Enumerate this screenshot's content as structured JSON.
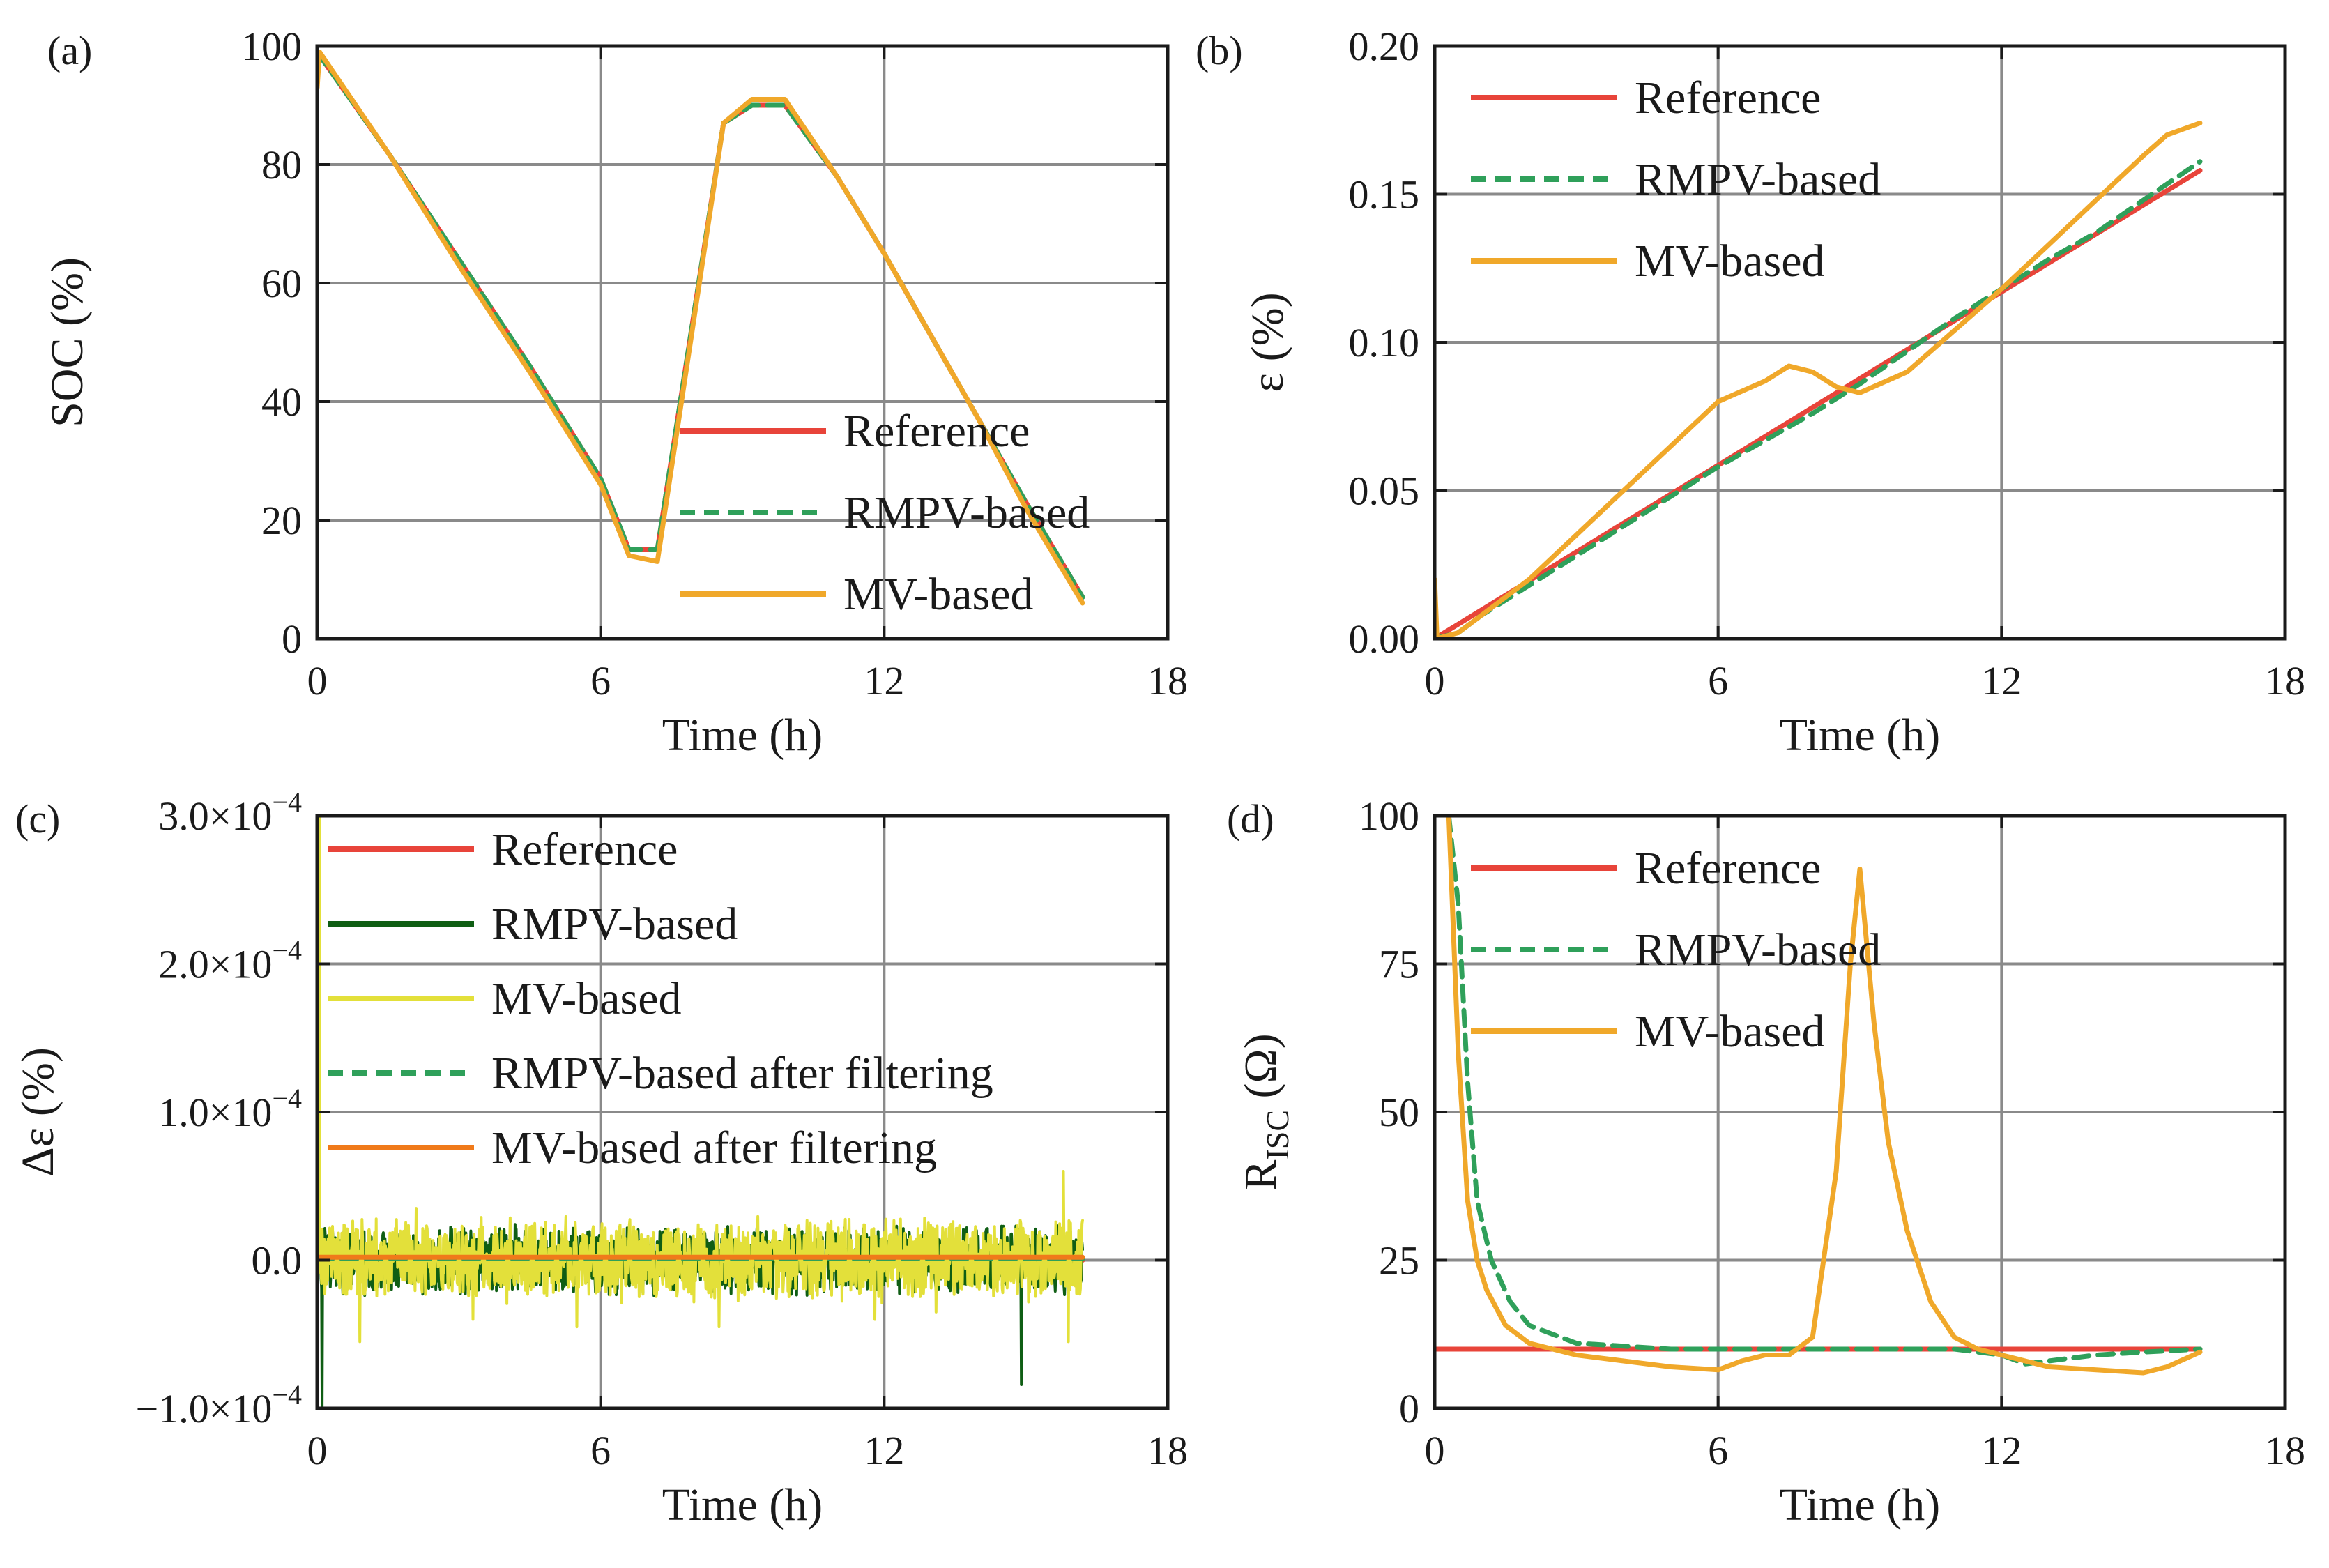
{
  "chart_data": [
    {
      "panel": "(a)",
      "type": "line",
      "xlabel": "Time (h)",
      "ylabel": "SOC (%)",
      "xlim": [
        0,
        18
      ],
      "ylim": [
        0,
        100
      ],
      "xticks": [
        0,
        6,
        12,
        18
      ],
      "yticks": [
        0,
        20,
        40,
        60,
        80,
        100
      ],
      "xtick_labels": [
        "0",
        "6",
        "12",
        "18"
      ],
      "ytick_labels": [
        "0",
        "20",
        "40",
        "60",
        "80",
        "100"
      ],
      "grid": true,
      "legend_position": "bottom-right",
      "series": [
        {
          "name": "Reference",
          "color": "#e8443a",
          "style": "solid",
          "x": [
            0,
            1.5,
            3,
            4.5,
            6,
            6.6,
            7.2,
            8.6,
            9.2,
            9.9,
            11,
            12,
            13,
            14,
            15,
            16.2
          ],
          "y": [
            99,
            82,
            64,
            46,
            27,
            15,
            15,
            87,
            90,
            90,
            78,
            65,
            51,
            37,
            23,
            7
          ]
        },
        {
          "name": "RMPV-based",
          "color": "#2fa05a",
          "style": "dashed",
          "x": [
            0,
            1.5,
            3,
            4.5,
            6,
            6.6,
            7.2,
            8.6,
            9.2,
            9.9,
            11,
            12,
            13,
            14,
            15,
            16.2
          ],
          "y": [
            99,
            82,
            64,
            46,
            27,
            15,
            15,
            87,
            90,
            90,
            78,
            65,
            51,
            37,
            23,
            7
          ]
        },
        {
          "name": "MV-based",
          "color": "#f0a82a",
          "style": "solid",
          "x": [
            0,
            0.05,
            1.5,
            3,
            4.5,
            6,
            6.6,
            7.2,
            8.6,
            9.2,
            9.9,
            11,
            12,
            13,
            14,
            15,
            16.2
          ],
          "y": [
            93,
            99,
            82,
            63,
            45,
            26,
            14,
            13,
            87,
            91,
            91,
            78,
            65,
            51,
            37,
            22,
            6
          ]
        }
      ]
    },
    {
      "panel": "(b)",
      "type": "line",
      "xlabel": "Time (h)",
      "ylabel": "ε (%)",
      "xlim": [
        0,
        18
      ],
      "ylim": [
        0,
        0.2
      ],
      "xticks": [
        0,
        6,
        12,
        18
      ],
      "yticks": [
        0,
        0.05,
        0.1,
        0.15,
        0.2
      ],
      "xtick_labels": [
        "0",
        "6",
        "12",
        "18"
      ],
      "ytick_labels": [
        "0.00",
        "0.05",
        "0.10",
        "0.15",
        "0.20"
      ],
      "grid": true,
      "legend_position": "top-left",
      "series": [
        {
          "name": "Reference",
          "color": "#e8443a",
          "style": "solid",
          "x": [
            0,
            16.2
          ],
          "y": [
            0,
            0.158
          ]
        },
        {
          "name": "RMPV-based",
          "color": "#2fa05a",
          "style": "dashed",
          "x": [
            0,
            0.5,
            1,
            2,
            3,
            4,
            5,
            6,
            7,
            8,
            9,
            10,
            11,
            12,
            13,
            14,
            15,
            16.2
          ],
          "y": [
            0,
            0.002,
            0.008,
            0.018,
            0.028,
            0.038,
            0.048,
            0.058,
            0.067,
            0.076,
            0.086,
            0.097,
            0.108,
            0.118,
            0.128,
            0.137,
            0.148,
            0.161
          ]
        },
        {
          "name": "MV-based",
          "color": "#f0a82a",
          "style": "solid",
          "x": [
            0,
            0.05,
            0.5,
            1,
            2,
            3,
            4,
            5,
            6,
            7,
            7.5,
            8,
            8.5,
            9,
            10,
            11,
            12,
            13,
            14,
            15,
            15.5,
            16.2
          ],
          "y": [
            0.02,
            0,
            0.002,
            0.008,
            0.02,
            0.035,
            0.05,
            0.065,
            0.08,
            0.087,
            0.092,
            0.09,
            0.085,
            0.083,
            0.09,
            0.104,
            0.118,
            0.133,
            0.148,
            0.163,
            0.17,
            0.174
          ]
        }
      ]
    },
    {
      "panel": "(c)",
      "type": "line",
      "xlabel": "Time (h)",
      "ylabel": "Δε (%)",
      "xlim": [
        0,
        18
      ],
      "ylim": [
        -0.0001,
        0.0003
      ],
      "xticks": [
        0,
        6,
        12,
        18
      ],
      "yticks": [
        -0.0001,
        0,
        0.0001,
        0.0002,
        0.0003
      ],
      "xtick_labels": [
        "0",
        "6",
        "12",
        "18"
      ],
      "ytick_labels": [
        {
          "base": "−1.0×10",
          "exp": "−4"
        },
        {
          "base": "0.0",
          "exp": ""
        },
        {
          "base": "1.0×10",
          "exp": "−4"
        },
        {
          "base": "2.0×10",
          "exp": "−4"
        },
        {
          "base": "3.0×10",
          "exp": "−4"
        }
      ],
      "grid": true,
      "legend_position": "top",
      "series": [
        {
          "name": "Reference",
          "color": "#e8443a",
          "style": "solid",
          "x": [
            0,
            16.2
          ],
          "y": [
            0,
            0
          ]
        },
        {
          "name": "RMPV-based",
          "color": "#0f5e14",
          "style": "solid",
          "noise_amplitude": 2.5e-05,
          "spikes": [
            {
              "x": 14.9,
              "y": -8.4e-05
            },
            {
              "x": 0.1,
              "y": -0.0001
            }
          ]
        },
        {
          "name": "MV-based",
          "color": "#e3e03a",
          "style": "solid",
          "noise_amplitude": 3e-05,
          "spikes": [
            {
              "x": 0.05,
              "y": 0.0003
            },
            {
              "x": 0.9,
              "y": -5.5e-05
            },
            {
              "x": 2.1,
              "y": 3.5e-05
            },
            {
              "x": 3.3,
              "y": -4e-05
            },
            {
              "x": 5.5,
              "y": -4.5e-05
            },
            {
              "x": 8.5,
              "y": -4.5e-05
            },
            {
              "x": 11.8,
              "y": -4e-05
            },
            {
              "x": 13.1,
              "y": -3.5e-05
            },
            {
              "x": 15.8,
              "y": 6e-05
            },
            {
              "x": 15.9,
              "y": -5.5e-05
            }
          ]
        },
        {
          "name": "RMPV-based after filtering",
          "color": "#2fa05a",
          "style": "dashed",
          "x": [
            0,
            16.2
          ],
          "y": [
            1e-06,
            1e-06
          ]
        },
        {
          "name": "MV-based after filtering",
          "color": "#f07a1a",
          "style": "solid",
          "x": [
            0,
            16.2
          ],
          "y": [
            2e-06,
            2e-06
          ]
        }
      ]
    },
    {
      "panel": "(d)",
      "type": "line",
      "xlabel": "Time (h)",
      "ylabel": "R",
      "ylabel_sub": "ISC",
      "ylabel_unit": " (Ω)",
      "xlim": [
        0,
        18
      ],
      "ylim": [
        0,
        100
      ],
      "xticks": [
        0,
        6,
        12,
        18
      ],
      "yticks": [
        0,
        25,
        50,
        75,
        100
      ],
      "xtick_labels": [
        "0",
        "6",
        "12",
        "18"
      ],
      "ytick_labels": [
        "0",
        "25",
        "50",
        "75",
        "100"
      ],
      "grid": true,
      "legend_position": "top-left",
      "series": [
        {
          "name": "Reference",
          "color": "#e8443a",
          "style": "solid",
          "x": [
            0,
            16.2
          ],
          "y": [
            10,
            10
          ]
        },
        {
          "name": "RMPV-based",
          "color": "#2fa05a",
          "style": "dashed",
          "x": [
            0.3,
            0.5,
            0.7,
            0.9,
            1.2,
            1.6,
            2,
            3,
            4,
            5,
            6,
            7,
            8,
            9,
            10,
            11,
            12,
            12.5,
            13,
            14,
            15,
            16.2
          ],
          "y": [
            100,
            85,
            55,
            35,
            25,
            18,
            14,
            11,
            10.5,
            10,
            10,
            10,
            10,
            10,
            10,
            10,
            9,
            7.5,
            8,
            9,
            9.5,
            10
          ]
        },
        {
          "name": "MV-based",
          "color": "#f0a82a",
          "style": "solid",
          "x": [
            0.3,
            0.5,
            0.7,
            0.9,
            1.1,
            1.5,
            2,
            3,
            4,
            5,
            6,
            6.5,
            7,
            7.5,
            8,
            8.5,
            8.8,
            9,
            9.3,
            9.6,
            10,
            10.5,
            11,
            11.5,
            12,
            13,
            14,
            15,
            15.5,
            16.2
          ],
          "y": [
            100,
            60,
            35,
            25,
            20,
            14,
            11,
            9,
            8,
            7,
            6.5,
            8,
            9,
            9,
            12,
            40,
            75,
            91,
            65,
            45,
            30,
            18,
            12,
            10,
            9,
            7,
            6.5,
            6,
            7,
            9.5
          ]
        }
      ]
    }
  ]
}
